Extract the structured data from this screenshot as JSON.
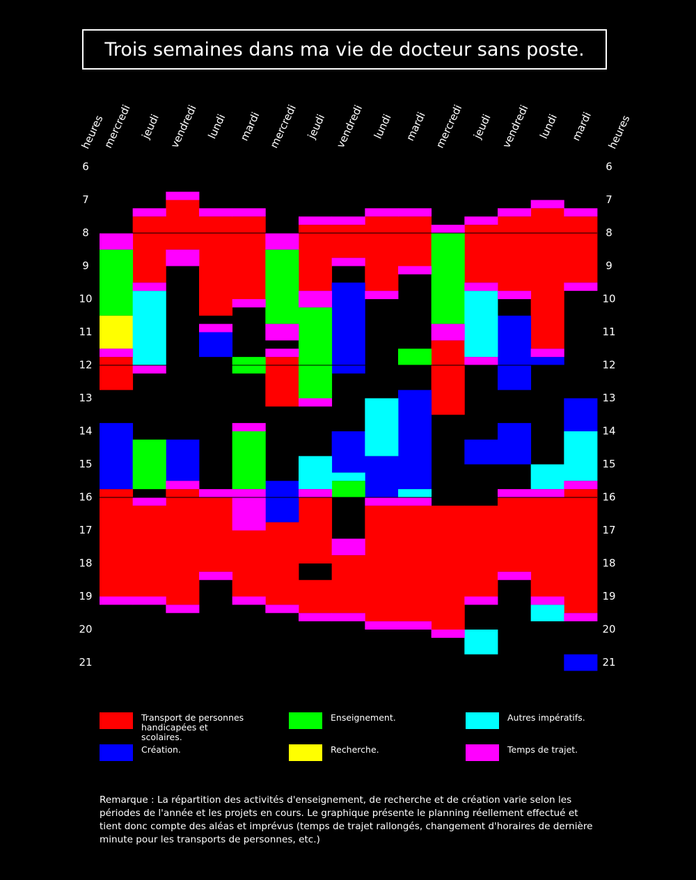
{
  "chart_data": {
    "type": "schedule",
    "title": "Trois semaines dans ma vie de docteur sans poste.",
    "hour_label": "heures",
    "days": [
      "mercredi",
      "jeudi",
      "vendredi",
      "lundi",
      "mardi",
      "mercredi",
      "jeudi",
      "vendredi",
      "lundi",
      "mardi",
      "mercredi",
      "jeudi",
      "vendredi",
      "lundi",
      "mardi"
    ],
    "ylim": [
      6,
      21.5
    ],
    "yticks": [
      6,
      7,
      8,
      9,
      10,
      11,
      12,
      13,
      14,
      15,
      16,
      17,
      18,
      19,
      20,
      21
    ],
    "reference_lines": [
      8,
      12,
      16
    ],
    "series": [
      {
        "name": "Transport de personnes handicapées et scolaires.",
        "color": "#ff0000",
        "blocks": [
          [
            1,
            7.5,
            9.5
          ],
          [
            2,
            7,
            8.5
          ],
          [
            3,
            7.5,
            10.5
          ],
          [
            4,
            7.5,
            10
          ],
          [
            6,
            7.75,
            9.75
          ],
          [
            7,
            7.75,
            8.75
          ],
          [
            8,
            7.5,
            9.75
          ],
          [
            9,
            7.5,
            9
          ],
          [
            11,
            7.75,
            9.5
          ],
          [
            12,
            7.5,
            9.75
          ],
          [
            13,
            7.25,
            11.5
          ],
          [
            14,
            7.5,
            9.5
          ],
          [
            0,
            11.75,
            12.75
          ],
          [
            5,
            11.75,
            13.25
          ],
          [
            10,
            11.25,
            13.5
          ],
          [
            0,
            15.75,
            19
          ],
          [
            1,
            16.25,
            19
          ],
          [
            2,
            15.75,
            19.25
          ],
          [
            3,
            16,
            18.25
          ],
          [
            4,
            17,
            19
          ],
          [
            5,
            16.75,
            19.25
          ],
          [
            6,
            16,
            18
          ],
          [
            6,
            18.5,
            19.5
          ],
          [
            7,
            17.75,
            19.5
          ],
          [
            8,
            16.25,
            19.75
          ],
          [
            9,
            16.25,
            19.75
          ],
          [
            10,
            16.25,
            20
          ],
          [
            11,
            16.25,
            19
          ],
          [
            12,
            16,
            18.25
          ],
          [
            13,
            16,
            19
          ],
          [
            14,
            15.75,
            19.5
          ]
        ]
      },
      {
        "name": "Création.",
        "color": "#0000ff",
        "blocks": [
          [
            3,
            11,
            11.75
          ],
          [
            7,
            9.5,
            12.25
          ],
          [
            12,
            10.5,
            12.75
          ],
          [
            13,
            11.75,
            12
          ],
          [
            0,
            13.75,
            15.75
          ],
          [
            2,
            14.25,
            15.5
          ],
          [
            5,
            15.5,
            16.75
          ],
          [
            7,
            14,
            15.25
          ],
          [
            8,
            14.75,
            16
          ],
          [
            9,
            12.75,
            15.75
          ],
          [
            11,
            14.25,
            15
          ],
          [
            12,
            13.75,
            15
          ],
          [
            14,
            13,
            14
          ],
          [
            14,
            20.75,
            21.25
          ]
        ]
      },
      {
        "name": "Enseignement.",
        "color": "#00ff00",
        "blocks": [
          [
            0,
            8.5,
            10.5
          ],
          [
            5,
            8.5,
            10.75
          ],
          [
            10,
            8,
            10.75
          ],
          [
            4,
            11.75,
            12.25
          ],
          [
            6,
            10.25,
            13
          ],
          [
            9,
            11.5,
            12
          ],
          [
            1,
            14.25,
            15.75
          ],
          [
            4,
            14,
            15.75
          ],
          [
            7,
            15.5,
            16
          ]
        ]
      },
      {
        "name": "Recherche.",
        "color": "#ffff00",
        "blocks": [
          [
            0,
            10.5,
            11.5
          ]
        ]
      },
      {
        "name": "Autres impératifs.",
        "color": "#00ffff",
        "blocks": [
          [
            1,
            9.75,
            12
          ],
          [
            11,
            9.75,
            11.75
          ],
          [
            6,
            14.75,
            15.75
          ],
          [
            7,
            15.25,
            15.5
          ],
          [
            8,
            13,
            14.75
          ],
          [
            9,
            15.75,
            16
          ],
          [
            13,
            15,
            15.75
          ],
          [
            13,
            19.25,
            19.75
          ],
          [
            14,
            14,
            15.5
          ],
          [
            11,
            20,
            20.75
          ]
        ]
      },
      {
        "name": "Temps de trajet.",
        "color": "#ff00ff",
        "blocks": [
          [
            0,
            8,
            8.5
          ],
          [
            0,
            11.5,
            11.75
          ],
          [
            0,
            19,
            19.25
          ],
          [
            1,
            7.25,
            7.5
          ],
          [
            1,
            9.5,
            9.75
          ],
          [
            1,
            12,
            12.25
          ],
          [
            1,
            16,
            16.25
          ],
          [
            1,
            19,
            19.25
          ],
          [
            2,
            6.75,
            7
          ],
          [
            2,
            8.5,
            9
          ],
          [
            2,
            15.5,
            15.75
          ],
          [
            2,
            19.25,
            19.5
          ],
          [
            3,
            7.25,
            7.5
          ],
          [
            3,
            10.75,
            11
          ],
          [
            3,
            15.75,
            16
          ],
          [
            3,
            18.25,
            18.5
          ],
          [
            4,
            7.25,
            7.5
          ],
          [
            4,
            10,
            10.25
          ],
          [
            4,
            13.75,
            14
          ],
          [
            4,
            15.75,
            17
          ],
          [
            4,
            19,
            19.25
          ],
          [
            5,
            8,
            8.5
          ],
          [
            5,
            10.75,
            11.25
          ],
          [
            5,
            11.5,
            11.75
          ],
          [
            5,
            19.25,
            19.5
          ],
          [
            6,
            7.5,
            7.75
          ],
          [
            6,
            9.75,
            10.25
          ],
          [
            6,
            13,
            13.25
          ],
          [
            6,
            15.75,
            16
          ],
          [
            6,
            19.5,
            19.75
          ],
          [
            7,
            7.5,
            7.75
          ],
          [
            7,
            8.75,
            9
          ],
          [
            7,
            17.25,
            17.75
          ],
          [
            7,
            19.5,
            19.75
          ],
          [
            8,
            7.25,
            7.5
          ],
          [
            8,
            9.75,
            10
          ],
          [
            8,
            16,
            16.25
          ],
          [
            8,
            19.75,
            20
          ],
          [
            9,
            7.25,
            7.5
          ],
          [
            9,
            9,
            9.25
          ],
          [
            9,
            16,
            16.25
          ],
          [
            9,
            19.75,
            20
          ],
          [
            10,
            7.75,
            8
          ],
          [
            10,
            10.75,
            11.25
          ],
          [
            10,
            20,
            20.25
          ],
          [
            11,
            7.5,
            7.75
          ],
          [
            11,
            9.5,
            9.75
          ],
          [
            11,
            11.75,
            12
          ],
          [
            11,
            19,
            19.25
          ],
          [
            12,
            7.25,
            7.5
          ],
          [
            12,
            9.75,
            10
          ],
          [
            12,
            15.75,
            16
          ],
          [
            12,
            18.25,
            18.5
          ],
          [
            13,
            7,
            7.25
          ],
          [
            13,
            11.5,
            11.75
          ],
          [
            13,
            15.75,
            16
          ],
          [
            13,
            19,
            19.25
          ],
          [
            14,
            7.25,
            7.5
          ],
          [
            14,
            9.5,
            9.75
          ],
          [
            14,
            15.5,
            15.75
          ],
          [
            14,
            19.5,
            19.75
          ]
        ]
      }
    ],
    "note": "Remarque : La répartition des activités d'enseignement, de recherche et de création varie selon les périodes de l'année et les projets en cours. Le graphique présente le planning réellement effectué et tient donc compte des aléas et imprévus (temps de trajet rallongés, changement d'horaires de dernière minute pour les transports de personnes, etc.)"
  }
}
